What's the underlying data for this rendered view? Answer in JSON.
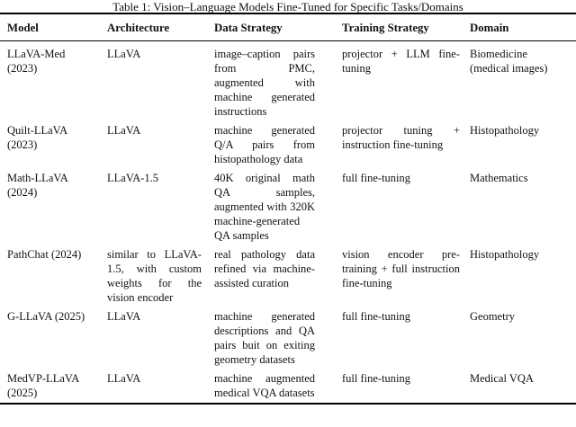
{
  "caption": "Table 1: Vision–Language Models Fine-Tuned for Specific Tasks/Domains",
  "table": {
    "headers": {
      "model": "Model",
      "architecture": "Architecture",
      "data_strategy": "Data Strategy",
      "training_strategy": "Training Strategy",
      "domain": "Domain"
    },
    "rows": [
      {
        "model": "LLaVA-Med (2023)",
        "architecture": "LLaVA",
        "data_strategy": "image–caption pairs from PMC, augmented with machine generated instructions",
        "training_strategy": "projector + LLM fine-tuning",
        "domain": "Biomedicine (medical images)"
      },
      {
        "model": "Quilt-LLaVA (2023)",
        "architecture": "LLaVA",
        "data_strategy": "machine generated Q/A pairs from histopathology data",
        "training_strategy": "projector tuning + instruction fine-tuning",
        "domain": "Histopathology"
      },
      {
        "model": "Math-LLaVA (2024)",
        "architecture": "LLaVA-1.5",
        "data_strategy": "40K original math QA samples, augmented with 320K machine-generated QA samples",
        "training_strategy": "full fine-tuning",
        "domain": "Mathematics"
      },
      {
        "model": "PathChat (2024)",
        "architecture": "similar to LLaVA-1.5, with custom weights for the vision encoder",
        "data_strategy": "real pathology data refined via machine-assisted curation",
        "training_strategy": "vision encoder pre-training + full instruction fine-tuning",
        "domain": "Histopathology"
      },
      {
        "model": "G-LLaVA (2025)",
        "architecture": "LLaVA",
        "data_strategy": "machine generated descriptions and QA pairs buit on exiting geometry datasets",
        "training_strategy": "full fine-tuning",
        "domain": "Geometry"
      },
      {
        "model": "MedVP-LLaVA (2025)",
        "architecture": "LLaVA",
        "data_strategy": "machine augmented medical VQA datasets",
        "training_strategy": "full fine-tuning",
        "domain": "Medical VQA"
      }
    ]
  }
}
